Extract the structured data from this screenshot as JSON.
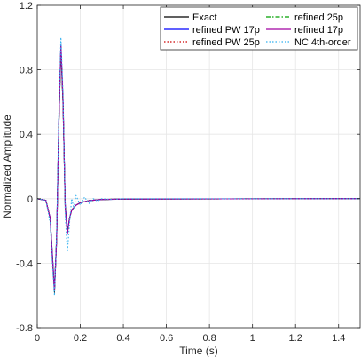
{
  "chart_data": {
    "type": "line",
    "title": "",
    "xlabel": "Time (s)",
    "ylabel": "Normalized Amplitude",
    "xlim": [
      0,
      1.5
    ],
    "ylim": [
      -0.8,
      1.2
    ],
    "xticks": [
      0,
      0.2,
      0.4,
      0.6,
      0.8,
      1,
      1.2,
      1.4
    ],
    "xtick_labels": [
      "0",
      "0.2",
      "0.4",
      "0.6",
      "0.8",
      "1",
      "1.2",
      "1.4"
    ],
    "yticks": [
      -0.8,
      -0.4,
      0,
      0.4,
      0.8,
      1.2
    ],
    "ytick_labels": [
      "-0.8",
      "-0.4",
      "0",
      "0.4",
      "0.8",
      "1.2"
    ],
    "grid": true,
    "legend_position": "top-right",
    "series": [
      {
        "name": "Exact",
        "color": "#000000",
        "dash": "solid",
        "x": [
          0,
          0.04,
          0.06,
          0.07,
          0.08,
          0.09,
          0.1,
          0.11,
          0.12,
          0.13,
          0.14,
          0.15,
          0.16,
          0.18,
          0.2,
          0.24,
          0.3,
          0.4,
          1.5
        ],
        "y": [
          0,
          -0.01,
          -0.12,
          -0.35,
          -0.58,
          -0.25,
          0.45,
          0.93,
          0.58,
          -0.05,
          -0.21,
          -0.12,
          -0.07,
          -0.04,
          -0.025,
          -0.012,
          -0.005,
          -0.002,
          0
        ]
      },
      {
        "name": "refined PW 17p",
        "color": "#0000ff",
        "dash": "solid",
        "x": [
          0,
          0.04,
          0.06,
          0.07,
          0.08,
          0.09,
          0.1,
          0.11,
          0.12,
          0.13,
          0.14,
          0.15,
          0.16,
          0.18,
          0.2,
          0.24,
          0.3,
          0.4,
          1.5
        ],
        "y": [
          0,
          -0.01,
          -0.12,
          -0.34,
          -0.56,
          -0.24,
          0.46,
          0.95,
          0.6,
          -0.04,
          -0.2,
          -0.12,
          -0.07,
          -0.04,
          -0.025,
          -0.012,
          -0.005,
          -0.002,
          0
        ]
      },
      {
        "name": "refined PW 25p",
        "color": "#cc0000",
        "dash": "dotted",
        "x": [
          0,
          0.04,
          0.06,
          0.07,
          0.08,
          0.09,
          0.1,
          0.11,
          0.12,
          0.13,
          0.14,
          0.15,
          0.16,
          0.18,
          0.2,
          0.24,
          0.3,
          0.4,
          1.5
        ],
        "y": [
          0,
          -0.01,
          -0.12,
          -0.35,
          -0.57,
          -0.25,
          0.45,
          0.94,
          0.59,
          -0.05,
          -0.21,
          -0.12,
          -0.07,
          -0.04,
          -0.025,
          -0.012,
          -0.005,
          -0.002,
          0
        ]
      },
      {
        "name": "refined 25p",
        "color": "#00a000",
        "dash": "dashdot",
        "x": [
          0,
          0.04,
          0.06,
          0.07,
          0.08,
          0.09,
          0.1,
          0.11,
          0.12,
          0.13,
          0.14,
          0.15,
          0.16,
          0.18,
          0.2,
          0.24,
          0.3,
          0.4,
          1.5
        ],
        "y": [
          0,
          -0.01,
          -0.12,
          -0.35,
          -0.57,
          -0.25,
          0.45,
          0.94,
          0.58,
          -0.05,
          -0.21,
          -0.12,
          -0.07,
          -0.04,
          -0.025,
          -0.012,
          -0.005,
          -0.002,
          0
        ]
      },
      {
        "name": "refined 17p",
        "color": "#a000a0",
        "dash": "solid",
        "x": [
          0,
          0.04,
          0.06,
          0.07,
          0.08,
          0.09,
          0.1,
          0.11,
          0.12,
          0.13,
          0.14,
          0.15,
          0.16,
          0.18,
          0.2,
          0.24,
          0.3,
          0.4,
          1.5
        ],
        "y": [
          0,
          -0.01,
          -0.12,
          -0.36,
          -0.57,
          -0.26,
          0.44,
          0.96,
          0.6,
          -0.06,
          -0.22,
          -0.12,
          -0.07,
          -0.04,
          -0.025,
          -0.012,
          -0.005,
          -0.002,
          0
        ]
      },
      {
        "name": "NC 4th-order",
        "color": "#30b0f0",
        "dash": "dotted",
        "x": [
          0,
          0.04,
          0.06,
          0.07,
          0.08,
          0.09,
          0.1,
          0.11,
          0.12,
          0.13,
          0.14,
          0.15,
          0.16,
          0.17,
          0.18,
          0.2,
          0.22,
          0.24,
          0.26,
          0.28,
          0.3,
          0.35,
          0.4,
          1.5
        ],
        "y": [
          0,
          -0.01,
          -0.15,
          -0.4,
          -0.6,
          -0.22,
          0.5,
          1.0,
          0.65,
          -0.1,
          -0.33,
          -0.15,
          0.0,
          -0.06,
          0.02,
          -0.04,
          0.01,
          -0.03,
          0.0,
          -0.015,
          0.0,
          -0.005,
          0.0,
          0
        ]
      }
    ]
  }
}
